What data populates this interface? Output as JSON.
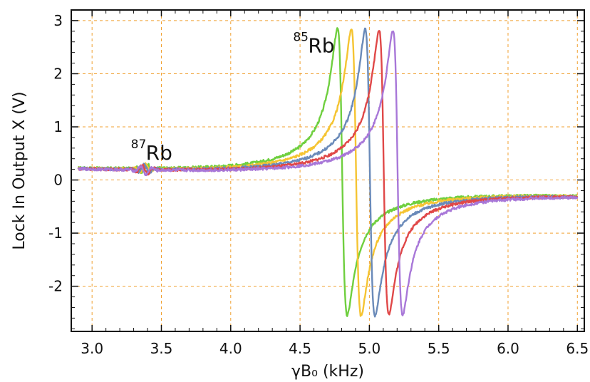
{
  "chart_data": {
    "type": "line",
    "xlabel": "γB₀ (kHz)",
    "ylabel": "Lock In Output X (V)",
    "xlim": [
      2.85,
      6.55
    ],
    "ylim": [
      -2.85,
      3.2
    ],
    "xticks": [
      "3.0",
      "3.5",
      "4.0",
      "4.5",
      "5.0",
      "5.5",
      "6.0",
      "6.5"
    ],
    "yticks": [
      "-2",
      "-1",
      "0",
      "1",
      "2",
      "3"
    ],
    "xtick_values": [
      3.0,
      3.5,
      4.0,
      4.5,
      5.0,
      5.5,
      6.0,
      6.5
    ],
    "ytick_values": [
      -2,
      -1,
      0,
      1,
      2,
      3
    ],
    "grid": true,
    "annotations": [
      {
        "sup": "85",
        "text": "Rb",
        "x": 4.45,
        "y": 2.4
      },
      {
        "sup": "87",
        "text": "Rb",
        "x": 3.28,
        "y": 0.38
      }
    ],
    "series": [
      {
        "color": "#6fcf3f",
        "peak_x": 4.77,
        "trough_x": 4.84,
        "peak_y": 2.9,
        "trough_y": -2.5
      },
      {
        "color": "#f5c432",
        "peak_x": 4.87,
        "trough_x": 4.94,
        "peak_y": 2.9,
        "trough_y": -2.5
      },
      {
        "color": "#6a8ab9",
        "peak_x": 4.97,
        "trough_x": 5.04,
        "peak_y": 2.9,
        "trough_y": -2.5
      },
      {
        "color": "#e04848",
        "peak_x": 5.07,
        "trough_x": 5.14,
        "peak_y": 2.9,
        "trough_y": -2.45
      },
      {
        "color": "#a877d8",
        "peak_x": 5.17,
        "trough_x": 5.24,
        "peak_y": 2.9,
        "trough_y": -2.45
      }
    ],
    "x_start": 2.9,
    "x_end": 6.5,
    "baseline_y_start": 0.12,
    "baseline_y_end": -0.2
  }
}
